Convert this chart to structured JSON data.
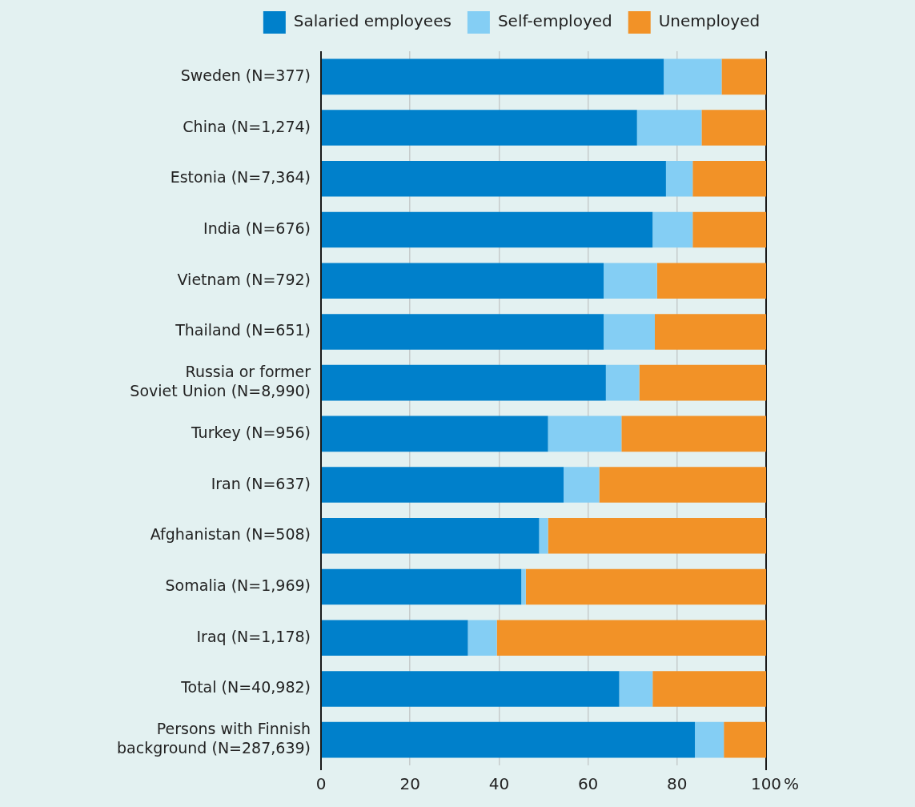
{
  "chart_data": {
    "type": "bar",
    "orientation": "horizontal",
    "stacked": true,
    "xlabel": "%",
    "categories": [
      "Sweden (N=377)",
      "China (N=1,274)",
      "Estonia (N=7,364)",
      "India (N=676)",
      "Vietnam (N=792)",
      "Thailand (N=651)",
      "Russia or former Soviet Union (N=8,990)",
      "Turkey (N=956)",
      "Iran (N=637)",
      "Afghanistan (N=508)",
      "Somalia (N=1,969)",
      "Iraq (N=1,178)",
      "Total (N=40,982)",
      "Persons with Finnish background (N=287,639)"
    ],
    "series": [
      {
        "name": "Salaried employees",
        "color": "#0080cb",
        "values": [
          77,
          71,
          77.5,
          74.5,
          63.5,
          63.5,
          64,
          51,
          54.5,
          49,
          45,
          33,
          67,
          84
        ]
      },
      {
        "name": "Self-employed",
        "color": "#84cef4",
        "values": [
          13,
          14.5,
          6,
          9,
          12,
          11.5,
          7.5,
          16.5,
          8,
          2,
          1,
          6.5,
          7.5,
          6.5
        ]
      },
      {
        "name": "Unemployed",
        "color": "#f29227",
        "values": [
          10,
          14.5,
          16.5,
          16.5,
          24.5,
          25,
          28.5,
          32.5,
          37.5,
          49,
          54,
          60.5,
          25.5,
          9.5
        ]
      }
    ],
    "xlim": [
      0,
      100
    ],
    "xticks": [
      0,
      20,
      40,
      60,
      80,
      100
    ],
    "grid": "x",
    "legend": "top"
  }
}
